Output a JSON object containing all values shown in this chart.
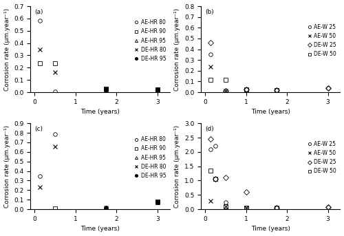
{
  "panels": [
    {
      "label": "(a)",
      "ylim": [
        0,
        0.7
      ],
      "yticks": [
        0.0,
        0.1,
        0.2,
        0.3,
        0.4,
        0.5,
        0.6,
        0.7
      ],
      "ylabel": "Corrosion rate (µm.year⁻¹)",
      "xlabel": "Time (years)",
      "series": [
        {
          "name": "AE-HR 80",
          "marker": "o",
          "filled": false,
          "x": [
            0.13,
            0.5,
            1.75,
            3.0
          ],
          "y": [
            0.585,
            0.005,
            0.03,
            0.02
          ]
        },
        {
          "name": "AE-HR 90",
          "marker": "s",
          "filled": false,
          "x": [
            0.13,
            0.5,
            1.75,
            3.0
          ],
          "y": [
            0.235,
            0.235,
            0.03,
            0.02
          ]
        },
        {
          "name": "AE-HR 95",
          "marker": "^",
          "filled": false,
          "x": [
            1.75,
            3.0
          ],
          "y": [
            0.025,
            0.02
          ]
        },
        {
          "name": "DE-HR 80",
          "marker": "x",
          "filled": false,
          "x": [
            0.13,
            0.5,
            1.75,
            3.0
          ],
          "y": [
            0.345,
            0.16,
            0.03,
            0.025
          ]
        },
        {
          "name": "DE-HR 95",
          "marker": "o",
          "filled": true,
          "x": [
            1.75,
            3.0
          ],
          "y": [
            0.025,
            0.025
          ]
        }
      ]
    },
    {
      "label": "(b)",
      "ylim": [
        0,
        0.8
      ],
      "yticks": [
        0.0,
        0.1,
        0.2,
        0.3,
        0.4,
        0.5,
        0.6,
        0.7,
        0.8
      ],
      "ylabel": "Corrosion rate (µm.year⁻¹)",
      "xlabel": "Time (years)",
      "series": [
        {
          "name": "AE-W 25",
          "marker": "o",
          "filled": false,
          "x": [
            0.13,
            0.5,
            1.0,
            1.75,
            3.0
          ],
          "y": [
            0.355,
            0.01,
            0.025,
            0.02,
            0.04
          ]
        },
        {
          "name": "AE-W 50",
          "marker": "x",
          "filled": false,
          "x": [
            0.13,
            0.5
          ],
          "y": [
            0.235,
            0.01
          ]
        },
        {
          "name": "DE-W 25",
          "marker": "D",
          "filled": false,
          "x": [
            0.13,
            0.5,
            1.0,
            1.75,
            3.0
          ],
          "y": [
            0.46,
            0.01,
            0.025,
            0.02,
            0.04
          ]
        },
        {
          "name": "DE-W 50",
          "marker": "s",
          "filled": false,
          "x": [
            0.13,
            0.5,
            1.0,
            1.75
          ],
          "y": [
            0.115,
            0.115,
            0.025,
            0.02
          ]
        }
      ]
    },
    {
      "label": "(c)",
      "ylim": [
        0,
        0.9
      ],
      "yticks": [
        0.0,
        0.1,
        0.2,
        0.3,
        0.4,
        0.5,
        0.6,
        0.7,
        0.8,
        0.9
      ],
      "ylabel": "Corrosion rate (µm.year⁻¹)",
      "xlabel": "Time (years)",
      "series": [
        {
          "name": "AE-HR 80",
          "marker": "o",
          "filled": false,
          "x": [
            0.13,
            0.5,
            1.75,
            3.0
          ],
          "y": [
            0.345,
            0.785,
            0.015,
            0.08
          ]
        },
        {
          "name": "AE-HR 90",
          "marker": "s",
          "filled": false,
          "x": [
            0.5,
            3.0
          ],
          "y": [
            0.005,
            0.08
          ]
        },
        {
          "name": "AE-HR 95",
          "marker": "^",
          "filled": false,
          "x": [
            1.75,
            3.0
          ],
          "y": [
            0.015,
            0.075
          ]
        },
        {
          "name": "DE-HR 80",
          "marker": "x",
          "filled": false,
          "x": [
            0.13,
            0.5,
            1.75,
            3.0
          ],
          "y": [
            0.23,
            0.655,
            0.015,
            0.08
          ]
        },
        {
          "name": "DE-HR 95",
          "marker": "o",
          "filled": true,
          "x": [
            1.75,
            3.0
          ],
          "y": [
            0.015,
            0.075
          ]
        }
      ]
    },
    {
      "label": "(d)",
      "ylim": [
        0,
        3.0
      ],
      "yticks": [
        0.0,
        0.5,
        1.0,
        1.5,
        2.0,
        2.5,
        3.0
      ],
      "ylabel": "Corrosion rate (µm.year⁻¹)",
      "xlabel": "Time (years)",
      "series": [
        {
          "name": "AE-W 25",
          "marker": "o",
          "filled": false,
          "x": [
            0.13,
            0.25,
            0.5,
            1.0,
            1.75,
            3.0
          ],
          "y": [
            2.1,
            2.2,
            0.25,
            0.04,
            0.04,
            0.08
          ]
        },
        {
          "name": "AE-W 50",
          "marker": "x",
          "filled": false,
          "x": [
            0.13,
            0.5,
            1.0
          ],
          "y": [
            0.3,
            0.1,
            0.04
          ]
        },
        {
          "name": "DE-W 25",
          "marker": "D",
          "filled": false,
          "x": [
            0.13,
            0.25,
            0.5,
            1.0,
            1.75,
            3.0
          ],
          "y": [
            2.45,
            1.05,
            1.1,
            0.6,
            0.04,
            0.08
          ]
        },
        {
          "name": "DE-W 50",
          "marker": "s",
          "filled": false,
          "x": [
            0.13,
            0.25,
            0.5,
            1.0,
            1.75
          ],
          "y": [
            1.35,
            1.05,
            0.1,
            0.04,
            0.04
          ]
        }
      ]
    }
  ],
  "legend_configs": [
    {
      "entries": [
        {
          "name": "AE-HR 80",
          "marker": "o",
          "filled": false
        },
        {
          "name": "AE-HR 90",
          "marker": "s",
          "filled": false
        },
        {
          "name": "AE-HR 95",
          "marker": "^",
          "filled": false
        },
        {
          "name": "DE-HR 80",
          "marker": "x",
          "filled": false
        },
        {
          "name": "DE-HR 95",
          "marker": "o",
          "filled": true
        }
      ]
    },
    {
      "entries": [
        {
          "name": "AE-W 25",
          "marker": "o",
          "filled": false
        },
        {
          "name": "AE-W 50",
          "marker": "x",
          "filled": false
        },
        {
          "name": "DE-W 25",
          "marker": "D",
          "filled": false
        },
        {
          "name": "DE-W 50",
          "marker": "s",
          "filled": false
        }
      ]
    },
    {
      "entries": [
        {
          "name": "AE-HR 80",
          "marker": "o",
          "filled": false
        },
        {
          "name": "AE-HR 90",
          "marker": "s",
          "filled": false
        },
        {
          "name": "AE-HR 95",
          "marker": "^",
          "filled": false
        },
        {
          "name": "DE-HR 80",
          "marker": "x",
          "filled": false
        },
        {
          "name": "DE-HR 95",
          "marker": "o",
          "filled": true
        }
      ]
    },
    {
      "entries": [
        {
          "name": "AE-W 25",
          "marker": "o",
          "filled": false
        },
        {
          "name": "AE-W 50",
          "marker": "x",
          "filled": false
        },
        {
          "name": "DE-W 25",
          "marker": "D",
          "filled": false
        },
        {
          "name": "DE-W 50",
          "marker": "s",
          "filled": false
        }
      ]
    }
  ],
  "xlim": [
    -0.1,
    3.3
  ],
  "xticks": [
    0,
    1,
    2,
    3
  ],
  "marker_size": 4,
  "font_size": 6.5,
  "legend_font_size": 5.5
}
